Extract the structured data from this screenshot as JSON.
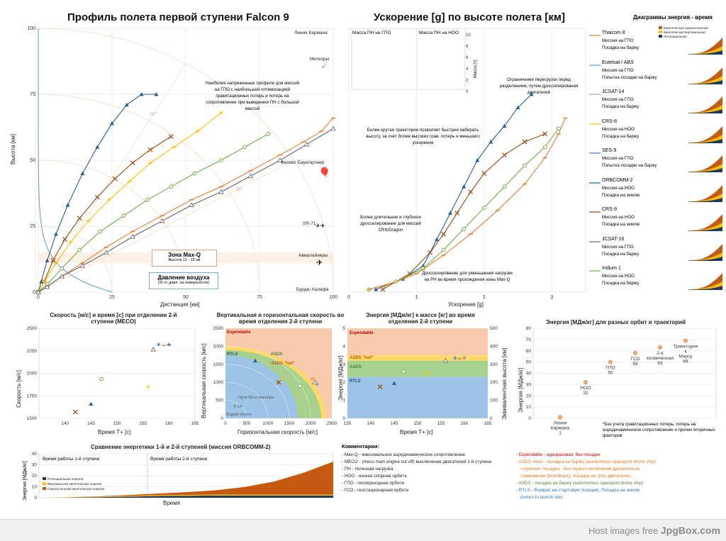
{
  "main_title": "Профиль полета первой ступени Falcon 9",
  "accel_title": "Ускорение [g] по высоте полета [км]",
  "energy_time_title": "Диаграммы энергия - время",
  "legend_energy_items": [
    "Кинетическая горизонтальная",
    "Кинетическая вертикальная",
    "Потенциальная"
  ],
  "profile_labels": {
    "karman": "Линия Кармана",
    "meteors": "Метеоры",
    "baumgartner": "Феликс Баунгартнер",
    "sr71": "SR-71",
    "airliners": "Авиалайнеры",
    "burj": "Бурдж-Халифа",
    "maxq_title": "Зона Max-Q",
    "maxq_sub": "Высота 11 - 15 км",
    "pressure_title": "Давление воздуха",
    "pressure_sub": "[% от давл. на поверхности]",
    "gto_note": "Наиболее напряженные профили для миссий на ГПО с наибольшей оптимизацией гравитационных потерь и потерь на сопротивление при выведении ПН с большой массой",
    "angle60": "60°",
    "angle30": "30°",
    "xlabel": "Дистанция [км]",
    "ylabel": "Высота [км]"
  },
  "accel_labels": {
    "payload_gto": "Масса ПН на ГПО",
    "payload_leo": "Масса ПН на НОО",
    "mass_axis": "Масса [т]",
    "overload_note": "Ограничение перегрузок перед разделением, путем дросселирования двигателей",
    "steep_note": "Более крутая траектория позволяет быстрее набирать высоту, за счёт более высоких грав. потерь и меньшего ускорения",
    "throttle_note": "Более длительное и глубокое дросселирование для миссий CRS/Dragon",
    "maxq_note": "Дросселирование для уменьшения нагрузки на РН во время прохождения зоны Max-Q",
    "xlabel": "Ускорение [g]"
  },
  "missions": [
    {
      "name": "Thaicom 8",
      "l1": "Миссия на ГПО",
      "l2": "Посадка на баржу",
      "color": "#ed7d31"
    },
    {
      "name": "Eutelsat / ABS",
      "l1": "Миссия на ГПО",
      "l2": "Попытка посадки на баржу",
      "color": "#5b9bd5"
    },
    {
      "name": "JCSAT-14",
      "l1": "Миссия на ГПО",
      "l2": "Посадка на баржу",
      "color": "#a5a5a5"
    },
    {
      "name": "CRS-8",
      "l1": "Миссия на НОО",
      "l2": "Посадка на баржу",
      "color": "#ffc000"
    },
    {
      "name": "SES-9",
      "l1": "Миссия на ГПО",
      "l2": "Попытка посадки на баржу",
      "color": "#4472c4"
    },
    {
      "name": "ORBCOMM-2",
      "l1": "Миссия на НОО",
      "l2": "Посадка на землю",
      "color": "#255e91"
    },
    {
      "name": "CRS-9",
      "l1": "Миссия на НОО",
      "l2": "Посадка на землю",
      "color": "#9e480e"
    },
    {
      "name": "JCSAT-16",
      "l1": "Миссия на ГПО",
      "l2": "Посадка на баржу",
      "color": "#636363"
    },
    {
      "name": "Iridium 1",
      "l1": "Миссия на НОО",
      "l2": "Посадка на баржу",
      "color": "#70ad47"
    }
  ],
  "meco_title": "Скорость [м/с] и время [с] при отделении 2-й ступени (MECO)",
  "meco_xlabel": "Время Т+ [с]",
  "meco_ylabel": "Скорость [м/с]",
  "vh_title": "Вертикальная и горизонтальная скорость во время отделения 2-й ступени",
  "vh_xlabel": "Горизонтальная скорость [м/с]",
  "vh_ylabel": "Вертикальная скорость [м/с]",
  "vh_zones": {
    "expendable": "Expendable",
    "asds": "ASDS",
    "asds_hot": "ASDS \"hot\"",
    "rtls": "RTLS",
    "bullet": "Пуля 50-го калибра",
    "f14": "F-14",
    "bugatti": "Bugatti Veyron"
  },
  "em_title": "Энергия [МДж/кг] к массе [кг] во время отделения 2-й ступени",
  "em_xlabel": "Время Т+ [с]",
  "em_ylabel": "Энергия [МДж/кг]",
  "em_y2label": "Эквивалентная высота [км]",
  "em_zones": {
    "expendable": "Expendable",
    "asds_hot": "ASDS \"hot\"",
    "asds": "ASDS",
    "rtls": "RTLS"
  },
  "orbit_title": "Энергия [МДж/кг] для разных орбит и траекторий",
  "orbit_ylabel": "Энергия [МДж/кг]",
  "orbit_note": "*Без учета гравитационных потерь, потерь на аэродинамическое сопротивление и прочих вторичных факторов",
  "compare_title": "Сравнение энергетики 1-й и 2-й ступеней (миссия ORBCOMM-2)",
  "compare_stage1": "Время работы 1-й ступени",
  "compare_stage2": "Время работы 2-й ступени",
  "compare_legend": [
    "Потенциальная энергия",
    "Вертикальная кинетическая энергия",
    "Горизонтальная кинетическая энергия"
  ],
  "compare_xlabel": "Время",
  "compare_ylabel": "Энергия [МДж/кг]",
  "comments_title": "Комментарии:",
  "comments_left": [
    "- Max-Q - максимальное аэродинамическое сопротивление",
    "- MECO - (meco main engine cut off) выключение двигателей 1-й ступени",
    "- ПН - полезная нагрузка",
    "- НОО - низкая опорная орбита",
    "- ГПО - геопереходная орбита",
    "- ГСО - геостационарная орбита"
  ],
  "comments_right": [
    {
      "text": "- Expendable - одноразовая, без посадки",
      "color": "#c00000"
    },
    {
      "text": "- ASDS «hot» - посадка на баржу (autonomous spaceport drone ship)",
      "color": "#e07a1c"
    },
    {
      "text": "«горячая» посадка - без первого включения двигателя на",
      "color": "#e07a1c"
    },
    {
      "text": "торможение (boostback), посадка на трёх двигателях.",
      "color": "#e07a1c"
    },
    {
      "text": "- ASDS - посадка на баржу (autonomous spaceport drone ship)",
      "color": "#548235"
    },
    {
      "text": "- RTLS - Возврат на стартовую позицию. Посадка на землю",
      "color": "#2e75b6"
    },
    {
      "text": "(rerurn to launch site)",
      "color": "#2e75b6"
    }
  ],
  "footer": {
    "prefix": "Host images free",
    "brand": "JpgBox.com"
  },
  "chart_data": [
    {
      "type": "line",
      "title": "Профиль полета первой ступени Falcon 9",
      "xlabel": "Дистанция [км]",
      "ylabel": "Высота [км]",
      "xlim": [
        0,
        100
      ],
      "ylim": [
        0,
        100
      ],
      "x_ticks": [
        "0",
        "25",
        "50",
        "75",
        "100"
      ],
      "y_ticks": [
        "0",
        "25",
        "50",
        "75",
        "100"
      ],
      "series": [
        {
          "name": "ORBCOMM-2",
          "x": [
            0,
            1,
            3,
            6,
            10,
            15,
            20,
            25,
            30,
            35,
            40
          ],
          "y": [
            0,
            4,
            12,
            22,
            33,
            45,
            55,
            64,
            71,
            75,
            75
          ]
        },
        {
          "name": "CRS-9",
          "x": [
            0,
            2,
            5,
            9,
            14,
            20,
            26,
            32,
            38,
            45
          ],
          "y": [
            0,
            4,
            12,
            20,
            28,
            36,
            43,
            49,
            54,
            59
          ]
        },
        {
          "name": "CRS-8",
          "x": [
            0,
            2,
            6,
            11,
            17,
            24,
            31,
            38,
            46,
            54,
            62
          ],
          "y": [
            0,
            4,
            11,
            19,
            27,
            35,
            42,
            49,
            55,
            61,
            68
          ]
        },
        {
          "name": "Iridium 1",
          "x": [
            0,
            3,
            8,
            14,
            21,
            29,
            37,
            45,
            53,
            62,
            70,
            78
          ],
          "y": [
            0,
            3,
            9,
            16,
            23,
            29,
            35,
            40,
            45,
            50,
            55,
            60
          ]
        },
        {
          "name": "Thaicom 8",
          "x": [
            0,
            3,
            8,
            15,
            23,
            32,
            42,
            52,
            62,
            72,
            82,
            90,
            96,
            100
          ],
          "y": [
            0,
            2,
            6,
            11,
            17,
            23,
            29,
            35,
            40,
            46,
            52,
            57,
            61,
            66
          ]
        },
        {
          "name": "JCSAT-16",
          "x": [
            0,
            3,
            8,
            15,
            23,
            32,
            42,
            52,
            62,
            72,
            82,
            91,
            100
          ],
          "y": [
            0,
            2,
            6,
            10,
            15,
            21,
            27,
            33,
            38,
            44,
            50,
            56,
            62
          ]
        }
      ]
    },
    {
      "type": "line",
      "title": "Ускорение [g] по высоте полета [км]",
      "xlabel": "Ускорение [g]",
      "xlim": [
        0,
        3.5
      ],
      "ylim": [
        0,
        100
      ],
      "x_ticks": [
        "0",
        "1",
        "2",
        "3"
      ],
      "series": [
        {
          "name": "ORBCOMM-2",
          "x": [
            0.4,
            0.8,
            1.1,
            1.3,
            1.5,
            1.7,
            1.9,
            2.1,
            2.3,
            2.5,
            2.7
          ],
          "y": [
            1,
            5,
            10,
            20,
            30,
            40,
            50,
            57,
            63,
            70,
            75
          ]
        },
        {
          "name": "CRS-9",
          "x": [
            0.5,
            0.9,
            1.2,
            1.4,
            1.6,
            1.8,
            2.0,
            2.3,
            2.6,
            2.9
          ],
          "y": [
            1,
            7,
            15,
            22,
            30,
            38,
            45,
            52,
            57,
            60
          ]
        },
        {
          "name": "Iridium 1",
          "x": [
            0.3,
            0.7,
            1.1,
            1.4,
            1.7,
            2.0,
            2.3,
            2.6,
            2.9,
            3.1
          ],
          "y": [
            1,
            4,
            9,
            16,
            24,
            32,
            40,
            48,
            55,
            62
          ]
        },
        {
          "name": "Thaicom 8",
          "x": [
            0.3,
            0.6,
            1.0,
            1.4,
            1.8,
            2.2,
            2.6,
            2.9,
            3.1,
            3.2
          ],
          "y": [
            1,
            3,
            7,
            14,
            22,
            31,
            41,
            51,
            60,
            66
          ]
        }
      ]
    },
    {
      "type": "scatter",
      "title": "Скорость [м/с] и время [с] при отделении 2-й ступени (MECO)",
      "xlabel": "Время Т+ [с]",
      "ylabel": "Скорость [м/с]",
      "xlim": [
        135,
        165
      ],
      "ylim": [
        1500,
        2500
      ],
      "x_ticks": [
        "140",
        "145",
        "150",
        "155",
        "160",
        "165"
      ],
      "y_ticks": [
        "1500",
        "1750",
        "2000",
        "2250",
        "2500"
      ],
      "points": [
        {
          "name": "CRS-9",
          "x": 142,
          "y": 1570
        },
        {
          "name": "ORBCOMM-2",
          "x": 145,
          "y": 1660
        },
        {
          "name": "Iridium 1",
          "x": 147,
          "y": 1935
        },
        {
          "name": "CRS-8",
          "x": 156,
          "y": 1850
        },
        {
          "name": "JCSAT-16",
          "x": 157,
          "y": 2265
        },
        {
          "name": "Eutelsat / ABS",
          "x": 158,
          "y": 2320
        },
        {
          "name": "Thaicom 8",
          "x": 159,
          "y": 2310
        },
        {
          "name": "JCSAT-14",
          "x": 160,
          "y": 2320
        },
        {
          "name": "SES-9",
          "x": 160,
          "y": 2315
        }
      ]
    },
    {
      "type": "scatter",
      "title": "Вертикальная и горизонтальная скорость во время отделения 2-й ступени",
      "xlabel": "Горизонтальная скорость [м/с]",
      "ylabel": "Вертикальная скорость [м/с]",
      "xlim": [
        0,
        2500
      ],
      "ylim": [
        0,
        2500
      ],
      "x_ticks": [
        "0",
        "500",
        "1000",
        "1500",
        "2000",
        "2500"
      ],
      "y_ticks": [
        "0",
        "500",
        "1000",
        "1500",
        "2000",
        "2500"
      ],
      "points": [
        {
          "name": "ORBCOMM-2",
          "x": 700,
          "y": 1600
        },
        {
          "name": "CRS-9",
          "x": 1250,
          "y": 1000
        },
        {
          "name": "CRS-8",
          "x": 1300,
          "y": 1100
        },
        {
          "name": "Iridium 1",
          "x": 1750,
          "y": 900
        },
        {
          "name": "Thaicom 8",
          "x": 2050,
          "y": 1100
        },
        {
          "name": "JCSAT-16",
          "x": 2100,
          "y": 1000
        },
        {
          "name": "JCSAT-14",
          "x": 2150,
          "y": 950
        }
      ]
    },
    {
      "type": "scatter",
      "title": "Энергия [МДж/кг] к массе [кг] во время отделения 2-й ступени",
      "xlabel": "Время Т+ [с]",
      "ylabel": "Энергия [МДж/кг]",
      "xlim": [
        135,
        165
      ],
      "ylim": [
        0,
        5
      ],
      "x_ticks": [
        "135",
        "140",
        "145",
        "150",
        "155",
        "160",
        "165"
      ],
      "y_ticks": [
        "0",
        "1",
        "2",
        "3",
        "4",
        "5"
      ],
      "y2_ticks": [
        "0",
        "100",
        "200",
        "300",
        "400",
        "500"
      ],
      "points": [
        {
          "name": "CRS-9",
          "x": 142,
          "y": 1.75
        },
        {
          "name": "ORBCOMM-2",
          "x": 145,
          "y": 1.95
        },
        {
          "name": "Iridium 1",
          "x": 147,
          "y": 2.6
        },
        {
          "name": "CRS-8",
          "x": 152,
          "y": 2.5
        },
        {
          "name": "JCSAT-16",
          "x": 156,
          "y": 3.2
        },
        {
          "name": "Eutelsat / ABS",
          "x": 158,
          "y": 3.35
        },
        {
          "name": "Thaicom 8",
          "x": 159,
          "y": 3.3
        },
        {
          "name": "JCSAT-14",
          "x": 160,
          "y": 3.35
        }
      ]
    },
    {
      "type": "scatter",
      "title": "Энергия [МДж/кг] для разных орбит и траекторий",
      "ylabel": "Энергия [МДж/кг]",
      "ylim": [
        0,
        80
      ],
      "y_ticks": [
        "0",
        "10",
        "20",
        "30",
        "40",
        "50",
        "60",
        "70",
        "80"
      ],
      "points": [
        {
          "label": "Линия Кармана",
          "value": 1
        },
        {
          "label": "НОО",
          "value": 32
        },
        {
          "label": "ГПО",
          "value": 50
        },
        {
          "label": "ГСО",
          "value": 58
        },
        {
          "label": "2-я космическая",
          "value": 63
        },
        {
          "label": "Траектория к Марсу",
          "value": 69
        }
      ]
    },
    {
      "type": "area",
      "title": "Сравнение энергетики 1-й и 2-й ступеней (миссия ORBCOMM-2)",
      "xlabel": "Время",
      "ylabel": "Энергия [МДж/кг]",
      "ylim": [
        0,
        40
      ],
      "y_ticks": [
        "0",
        "10",
        "20",
        "30",
        "40"
      ],
      "series": [
        {
          "name": "Потенциальная энергия",
          "values": [
            0,
            0.2,
            0.5,
            1,
            1.5,
            1.8,
            2,
            2,
            2,
            2,
            2
          ]
        },
        {
          "name": "Вертикальная кинетическая энергия",
          "values": [
            0,
            0.2,
            0.4,
            0.6,
            0.8,
            0.8,
            0.8,
            0.8,
            0.8,
            0.8,
            0.8
          ]
        },
        {
          "name": "Горизонтальная кинетическая энергия",
          "values": [
            0,
            0.1,
            0.3,
            0.8,
            1.5,
            2.5,
            4,
            7,
            12,
            20,
            30
          ]
        }
      ]
    }
  ]
}
